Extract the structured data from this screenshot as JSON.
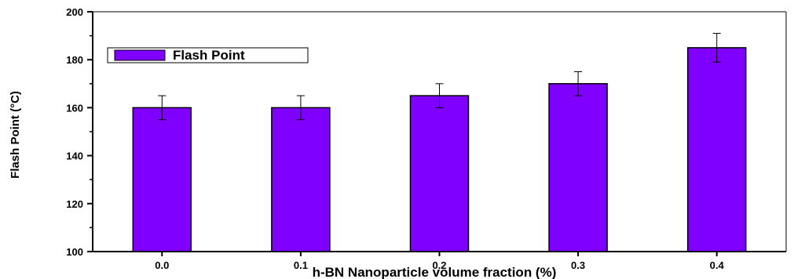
{
  "chart_data": {
    "type": "bar",
    "categories": [
      "0.0",
      "0.1",
      "0.2",
      "0.3",
      "0.4"
    ],
    "series": [
      {
        "name": "Flash Point",
        "values": [
          160,
          160,
          165,
          170,
          185
        ],
        "errors": [
          5,
          5,
          5,
          5,
          6
        ],
        "color": "#7f00ff"
      }
    ],
    "xlabel": "h-BN Nanoparticle volume fraction (%)",
    "ylabel": "Flash Point (°C)",
    "ylim": [
      100,
      200
    ],
    "yticks": [
      "100",
      "120",
      "140",
      "160",
      "180",
      "200"
    ],
    "grid": false,
    "legend_position": "top-left"
  }
}
